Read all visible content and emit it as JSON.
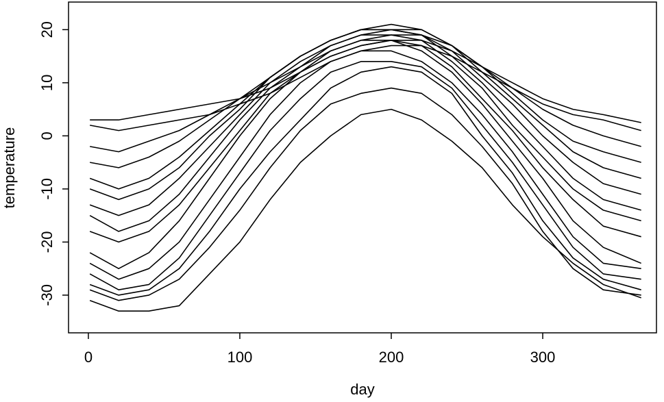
{
  "chart_data": {
    "type": "line",
    "x_label": "day",
    "y_label": "temperature",
    "xlim": [
      -13.1,
      375.1
    ],
    "ylim": [
      -37.1,
      25.2
    ],
    "xticks": [
      0,
      100,
      200,
      300
    ],
    "yticks": [
      -30,
      -20,
      -10,
      0,
      10,
      20
    ],
    "grid": false,
    "x": [
      1,
      20,
      40,
      60,
      80,
      100,
      120,
      140,
      160,
      180,
      200,
      220,
      240,
      260,
      280,
      300,
      320,
      340,
      365
    ],
    "series": [
      {
        "color": "#000000",
        "values": [
          3,
          3,
          4,
          5,
          6,
          7,
          9,
          12,
          15,
          17,
          18,
          18,
          16,
          13,
          10,
          7,
          5,
          4,
          2.5
        ]
      },
      {
        "color": "#000000",
        "values": [
          2,
          1,
          2,
          3,
          4,
          6,
          8,
          11,
          14,
          16,
          17,
          17,
          15,
          12,
          9,
          6,
          4,
          3,
          1
        ]
      },
      {
        "color": "#000000",
        "values": [
          -2,
          -3,
          -1,
          1,
          4,
          7,
          10,
          13,
          16,
          18,
          19,
          19,
          17,
          13,
          9,
          5,
          2,
          0,
          -2
        ]
      },
      {
        "color": "#000000",
        "values": [
          -5,
          -6,
          -4,
          -1,
          3,
          7,
          11,
          15,
          18,
          20,
          20,
          20,
          17,
          13,
          8,
          3,
          -1,
          -3,
          -5
        ]
      },
      {
        "color": "#000000",
        "values": [
          -8,
          -10,
          -8,
          -4,
          1,
          6,
          11,
          15,
          18,
          20,
          21,
          20,
          17,
          12,
          7,
          2,
          -3,
          -6,
          -8
        ]
      },
      {
        "color": "#000000",
        "values": [
          -10,
          -12,
          -10,
          -6,
          0,
          5,
          11,
          15,
          18,
          20,
          20,
          19,
          16,
          11,
          6,
          0,
          -5,
          -9,
          -11
        ]
      },
      {
        "color": "#000000",
        "values": [
          -13,
          -15,
          -13,
          -8,
          -2,
          4,
          10,
          14,
          17,
          19,
          20,
          19,
          15,
          10,
          4,
          -2,
          -8,
          -12,
          -14
        ]
      },
      {
        "color": "#000000",
        "values": [
          -15,
          -18,
          -16,
          -11,
          -4,
          3,
          9,
          13,
          17,
          19,
          19,
          18,
          14,
          9,
          2,
          -4,
          -10,
          -14,
          -16
        ]
      },
      {
        "color": "#000000",
        "values": [
          -18,
          -20,
          -18,
          -13,
          -6,
          1,
          8,
          12,
          16,
          18,
          18,
          17,
          13,
          7,
          1,
          -6,
          -12,
          -17,
          -19
        ]
      },
      {
        "color": "#000000",
        "values": [
          -22,
          -25,
          -22,
          -16,
          -8,
          0,
          7,
          12,
          15,
          17,
          18,
          16,
          12,
          6,
          -1,
          -8,
          -16,
          -21,
          -24
        ]
      },
      {
        "color": "#000000",
        "values": [
          -24,
          -27,
          -25,
          -20,
          -12,
          -4,
          4,
          10,
          14,
          16,
          16,
          14,
          10,
          4,
          -3,
          -11,
          -19,
          -24,
          -25
        ]
      },
      {
        "color": "#000000",
        "values": [
          -26,
          -29,
          -28,
          -23,
          -15,
          -7,
          1,
          7,
          12,
          14,
          14,
          13,
          9,
          2,
          -5,
          -13,
          -21,
          -26,
          -27
        ]
      },
      {
        "color": "#000000",
        "values": [
          -28,
          -30,
          -29,
          -25,
          -18,
          -10,
          -3,
          3,
          9,
          12,
          13,
          12,
          8,
          0,
          -7,
          -16,
          -23,
          -27,
          -29
        ]
      },
      {
        "color": "#000000",
        "values": [
          -29,
          -31,
          -30,
          -27,
          -21,
          -14,
          -6,
          1,
          6,
          8,
          9,
          8,
          4,
          -2,
          -9,
          -18,
          -25,
          -29,
          -30
        ]
      },
      {
        "color": "#000000",
        "values": [
          -31,
          -33,
          -33,
          -32,
          -26,
          -20,
          -12,
          -5,
          0,
          4,
          5,
          3,
          -1,
          -6,
          -13,
          -19,
          -24,
          -28,
          -30.5
        ]
      }
    ]
  }
}
